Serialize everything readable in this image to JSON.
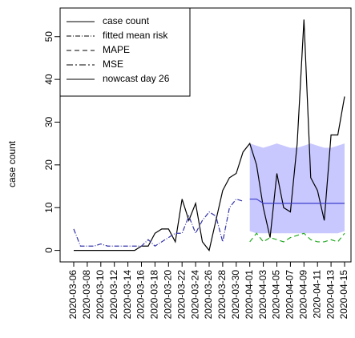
{
  "chart_data": {
    "type": "line",
    "y_label": "case count",
    "categories": [
      "2020-03-06",
      null,
      "2020-03-08",
      null,
      "2020-03-10",
      null,
      "2020-03-12",
      null,
      "2020-03-14",
      null,
      "2020-03-16",
      null,
      "2020-03-18",
      null,
      "2020-03-20",
      null,
      "2020-03-22",
      null,
      "2020-03-24",
      null,
      "2020-03-26",
      null,
      "2020-03-28",
      null,
      "2020-03-30",
      null,
      "2020-04-01",
      null,
      "2020-04-03",
      null,
      "2020-04-05",
      null,
      "2020-04-07",
      null,
      "2020-04-09",
      null,
      "2020-04-11",
      null,
      "2020-04-13",
      null,
      "2020-04-15",
      null
    ],
    "ylim": [
      -2.7,
      56.7
    ],
    "yticks": [
      0,
      10,
      20,
      30,
      40,
      50
    ],
    "band": {
      "color": "#c8c8ff",
      "lower": [
        null,
        null,
        null,
        null,
        null,
        null,
        null,
        null,
        null,
        null,
        null,
        null,
        null,
        null,
        null,
        null,
        null,
        null,
        null,
        null,
        null,
        null,
        null,
        null,
        null,
        null,
        4.5,
        4,
        4,
        4,
        4,
        4,
        4,
        4,
        4,
        4,
        4,
        4,
        4,
        4,
        4.5,
        null
      ],
      "upper": [
        null,
        null,
        null,
        null,
        null,
        null,
        null,
        null,
        null,
        null,
        null,
        null,
        null,
        null,
        null,
        null,
        null,
        null,
        null,
        null,
        null,
        null,
        null,
        null,
        null,
        null,
        25,
        24.5,
        24,
        24.5,
        25,
        24.5,
        24,
        24,
        24.5,
        25,
        24.5,
        24,
        24,
        24.5,
        25,
        null
      ]
    },
    "series": [
      {
        "name": "case count",
        "color": "#000000",
        "dash": "none",
        "values": [
          0,
          0,
          0,
          0,
          0,
          0,
          0,
          0,
          0,
          0,
          1,
          1,
          4,
          5,
          5,
          2,
          12,
          7,
          11,
          2,
          0,
          7,
          14,
          17,
          18,
          23,
          25,
          20,
          10,
          3,
          18,
          10,
          9,
          25,
          54,
          17,
          14,
          7,
          27,
          27,
          36,
          null
        ]
      },
      {
        "name": "fitted mean risk",
        "color": "#3333aa",
        "dash": "6 2 1 2",
        "values": [
          5,
          1,
          1,
          1,
          1.5,
          1,
          1,
          1,
          1,
          1,
          1,
          2.5,
          1,
          2,
          3,
          4,
          4,
          8,
          4,
          7,
          9,
          8,
          2,
          10,
          12,
          11.5,
          null,
          null,
          null,
          null,
          null,
          null,
          null,
          null,
          null,
          null,
          null,
          null,
          null,
          null,
          null,
          null
        ]
      },
      {
        "name": "MAPE",
        "color": "#22aa22",
        "dash": "6 4",
        "values": [
          null,
          null,
          null,
          null,
          null,
          null,
          null,
          null,
          null,
          null,
          null,
          null,
          null,
          null,
          null,
          null,
          null,
          null,
          null,
          null,
          null,
          null,
          null,
          null,
          null,
          null,
          2,
          4,
          2,
          3,
          2.5,
          2,
          3,
          3.5,
          4,
          2.5,
          2,
          2,
          2.5,
          2,
          4,
          null
        ]
      },
      {
        "name": "MSE",
        "color": "#000000",
        "dash": "8 3 2 3",
        "values": [
          null,
          null,
          null,
          null,
          null,
          null,
          null,
          null,
          null,
          null,
          null,
          null,
          null,
          null,
          null,
          null,
          null,
          null,
          null,
          null,
          null,
          null,
          null,
          null,
          null,
          null,
          null,
          null,
          null,
          null,
          null,
          null,
          null,
          null,
          null,
          null,
          null,
          null,
          null,
          null,
          null,
          null
        ]
      },
      {
        "name": "nowcast day 26",
        "color": "#3b3bcc",
        "dash": "none",
        "values": [
          null,
          null,
          null,
          null,
          null,
          null,
          null,
          null,
          null,
          null,
          null,
          null,
          null,
          null,
          null,
          null,
          null,
          null,
          null,
          null,
          null,
          null,
          null,
          null,
          null,
          null,
          12,
          12,
          11,
          11,
          11,
          11,
          11,
          11,
          11,
          11,
          11,
          11,
          11,
          11,
          11,
          null
        ]
      }
    ]
  }
}
